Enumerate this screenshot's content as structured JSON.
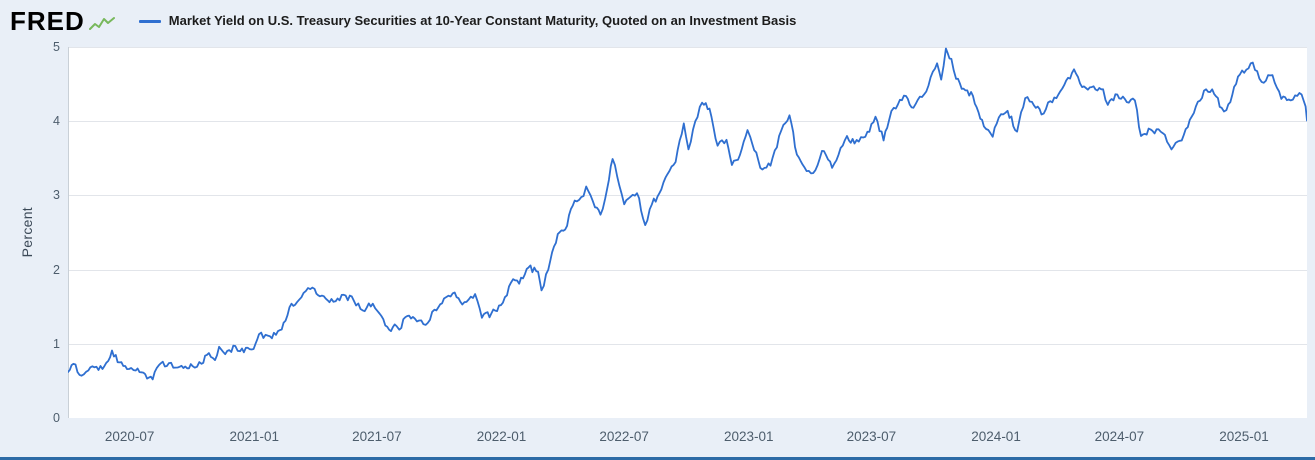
{
  "header": {
    "logo_text": "FRED",
    "series_title": "Market Yield on U.S. Treasury Securities at 10-Year Constant Maturity, Quoted on an Investment Basis"
  },
  "colors": {
    "page_background": "#e9eff7",
    "plot_background": "#ffffff",
    "gridline": "#e2e5ea",
    "axis_line": "#a9b2ba",
    "line": "#2f6fd0",
    "bottom_bar": "#2d6ba6",
    "tick_label": "#4d5d6c",
    "logo_sparkline": "#78b85c",
    "title_text": "#1c1c1c"
  },
  "chart_data": {
    "type": "line",
    "title": "Market Yield on U.S. Treasury Securities at 10-Year Constant Maturity, Quoted on an Investment Basis",
    "xlabel": "",
    "ylabel": "Percent",
    "ylim": [
      0,
      5
    ],
    "yticks": [
      0,
      1,
      2,
      3,
      4,
      5
    ],
    "xlim": [
      "2020-04-01",
      "2025-04-04"
    ],
    "xtick_labels": [
      "2020-07",
      "2021-01",
      "2021-07",
      "2022-01",
      "2022-07",
      "2023-01",
      "2023-07",
      "2024-01",
      "2024-07",
      "2025-01"
    ],
    "grid": "horizontal",
    "legend_position": "top-left",
    "series": [
      {
        "name": "Market Yield on U.S. Treasury Securities at 10-Year Constant Maturity, Quoted on an Investment Basis",
        "color": "#2f6fd0",
        "units": "Percent",
        "points": [
          [
            "2020-04-01",
            0.62
          ],
          [
            "2020-04-09",
            0.73
          ],
          [
            "2020-04-21",
            0.57
          ],
          [
            "2020-05-01",
            0.64
          ],
          [
            "2020-05-13",
            0.69
          ],
          [
            "2020-05-22",
            0.66
          ],
          [
            "2020-06-05",
            0.91
          ],
          [
            "2020-06-16",
            0.75
          ],
          [
            "2020-06-30",
            0.66
          ],
          [
            "2020-07-10",
            0.64
          ],
          [
            "2020-07-24",
            0.59
          ],
          [
            "2020-08-04",
            0.52
          ],
          [
            "2020-08-13",
            0.71
          ],
          [
            "2020-08-28",
            0.74
          ],
          [
            "2020-09-10",
            0.68
          ],
          [
            "2020-09-24",
            0.67
          ],
          [
            "2020-10-02",
            0.7
          ],
          [
            "2020-10-15",
            0.73
          ],
          [
            "2020-10-23",
            0.85
          ],
          [
            "2020-11-04",
            0.78
          ],
          [
            "2020-11-10",
            0.96
          ],
          [
            "2020-11-19",
            0.86
          ],
          [
            "2020-12-04",
            0.97
          ],
          [
            "2020-12-11",
            0.9
          ],
          [
            "2020-12-31",
            0.93
          ],
          [
            "2021-01-08",
            1.13
          ],
          [
            "2021-01-21",
            1.11
          ],
          [
            "2021-02-02",
            1.12
          ],
          [
            "2021-02-16",
            1.31
          ],
          [
            "2021-02-25",
            1.54
          ],
          [
            "2021-03-05",
            1.56
          ],
          [
            "2021-03-18",
            1.71
          ],
          [
            "2021-03-31",
            1.74
          ],
          [
            "2021-04-08",
            1.64
          ],
          [
            "2021-04-22",
            1.56
          ],
          [
            "2021-05-04",
            1.61
          ],
          [
            "2021-05-13",
            1.66
          ],
          [
            "2021-05-28",
            1.58
          ],
          [
            "2021-06-10",
            1.45
          ],
          [
            "2021-06-25",
            1.54
          ],
          [
            "2021-07-02",
            1.44
          ],
          [
            "2021-07-19",
            1.19
          ],
          [
            "2021-07-30",
            1.24
          ],
          [
            "2021-08-03",
            1.19
          ],
          [
            "2021-08-12",
            1.36
          ],
          [
            "2021-08-26",
            1.34
          ],
          [
            "2021-09-14",
            1.28
          ],
          [
            "2021-09-24",
            1.46
          ],
          [
            "2021-10-08",
            1.61
          ],
          [
            "2021-10-21",
            1.68
          ],
          [
            "2021-11-04",
            1.53
          ],
          [
            "2021-11-23",
            1.67
          ],
          [
            "2021-12-03",
            1.35
          ],
          [
            "2021-12-17",
            1.41
          ],
          [
            "2021-12-31",
            1.52
          ],
          [
            "2022-01-18",
            1.87
          ],
          [
            "2022-01-27",
            1.81
          ],
          [
            "2022-02-10",
            2.03
          ],
          [
            "2022-02-24",
            1.97
          ],
          [
            "2022-03-01",
            1.72
          ],
          [
            "2022-03-11",
            2.0
          ],
          [
            "2022-03-25",
            2.48
          ],
          [
            "2022-04-05",
            2.54
          ],
          [
            "2022-04-19",
            2.93
          ],
          [
            "2022-05-02",
            2.99
          ],
          [
            "2022-05-06",
            3.12
          ],
          [
            "2022-05-19",
            2.84
          ],
          [
            "2022-05-27",
            2.74
          ],
          [
            "2022-06-03",
            2.96
          ],
          [
            "2022-06-14",
            3.49
          ],
          [
            "2022-06-24",
            3.13
          ],
          [
            "2022-07-01",
            2.88
          ],
          [
            "2022-07-20",
            3.03
          ],
          [
            "2022-08-01",
            2.6
          ],
          [
            "2022-08-11",
            2.88
          ],
          [
            "2022-08-22",
            3.03
          ],
          [
            "2022-09-06",
            3.33
          ],
          [
            "2022-09-15",
            3.45
          ],
          [
            "2022-09-27",
            3.97
          ],
          [
            "2022-10-04",
            3.62
          ],
          [
            "2022-10-14",
            4.0
          ],
          [
            "2022-10-24",
            4.25
          ],
          [
            "2022-11-04",
            4.17
          ],
          [
            "2022-11-16",
            3.67
          ],
          [
            "2022-11-29",
            3.75
          ],
          [
            "2022-12-07",
            3.41
          ],
          [
            "2022-12-16",
            3.48
          ],
          [
            "2022-12-30",
            3.88
          ],
          [
            "2023-01-03",
            3.79
          ],
          [
            "2023-01-18",
            3.37
          ],
          [
            "2023-02-02",
            3.4
          ],
          [
            "2023-02-21",
            3.95
          ],
          [
            "2023-03-02",
            4.08
          ],
          [
            "2023-03-13",
            3.55
          ],
          [
            "2023-03-24",
            3.38
          ],
          [
            "2023-04-06",
            3.3
          ],
          [
            "2023-04-19",
            3.6
          ],
          [
            "2023-05-04",
            3.37
          ],
          [
            "2023-05-26",
            3.8
          ],
          [
            "2023-06-06",
            3.7
          ],
          [
            "2023-06-22",
            3.79
          ],
          [
            "2023-07-07",
            4.06
          ],
          [
            "2023-07-19",
            3.74
          ],
          [
            "2023-07-27",
            4.01
          ],
          [
            "2023-08-03",
            4.18
          ],
          [
            "2023-08-21",
            4.34
          ],
          [
            "2023-09-01",
            4.18
          ],
          [
            "2023-09-20",
            4.4
          ],
          [
            "2023-10-06",
            4.78
          ],
          [
            "2023-10-12",
            4.56
          ],
          [
            "2023-10-19",
            4.98
          ],
          [
            "2023-10-27",
            4.84
          ],
          [
            "2023-11-03",
            4.57
          ],
          [
            "2023-11-14",
            4.44
          ],
          [
            "2023-11-28",
            4.34
          ],
          [
            "2023-12-06",
            4.12
          ],
          [
            "2023-12-14",
            3.93
          ],
          [
            "2023-12-27",
            3.79
          ],
          [
            "2024-01-05",
            4.05
          ],
          [
            "2024-01-18",
            4.14
          ],
          [
            "2024-02-01",
            3.86
          ],
          [
            "2024-02-13",
            4.31
          ],
          [
            "2024-02-23",
            4.26
          ],
          [
            "2024-03-08",
            4.09
          ],
          [
            "2024-03-21",
            4.27
          ],
          [
            "2024-04-02",
            4.36
          ],
          [
            "2024-04-25",
            4.7
          ],
          [
            "2024-05-07",
            4.46
          ],
          [
            "2024-05-24",
            4.47
          ],
          [
            "2024-06-07",
            4.43
          ],
          [
            "2024-06-14",
            4.22
          ],
          [
            "2024-06-28",
            4.36
          ],
          [
            "2024-07-09",
            4.3
          ],
          [
            "2024-07-24",
            4.28
          ],
          [
            "2024-08-02",
            3.8
          ],
          [
            "2024-08-16",
            3.89
          ],
          [
            "2024-09-03",
            3.84
          ],
          [
            "2024-09-16",
            3.62
          ],
          [
            "2024-10-01",
            3.74
          ],
          [
            "2024-10-22",
            4.2
          ],
          [
            "2024-11-06",
            4.43
          ],
          [
            "2024-11-15",
            4.43
          ],
          [
            "2024-11-29",
            4.18
          ],
          [
            "2024-12-06",
            4.15
          ],
          [
            "2024-12-26",
            4.63
          ],
          [
            "2025-01-14",
            4.79
          ],
          [
            "2025-01-27",
            4.53
          ],
          [
            "2025-02-12",
            4.62
          ],
          [
            "2025-02-25",
            4.3
          ],
          [
            "2025-03-11",
            4.28
          ],
          [
            "2025-03-27",
            4.36
          ],
          [
            "2025-04-02",
            4.2
          ],
          [
            "2025-04-04",
            4.01
          ]
        ]
      }
    ]
  }
}
